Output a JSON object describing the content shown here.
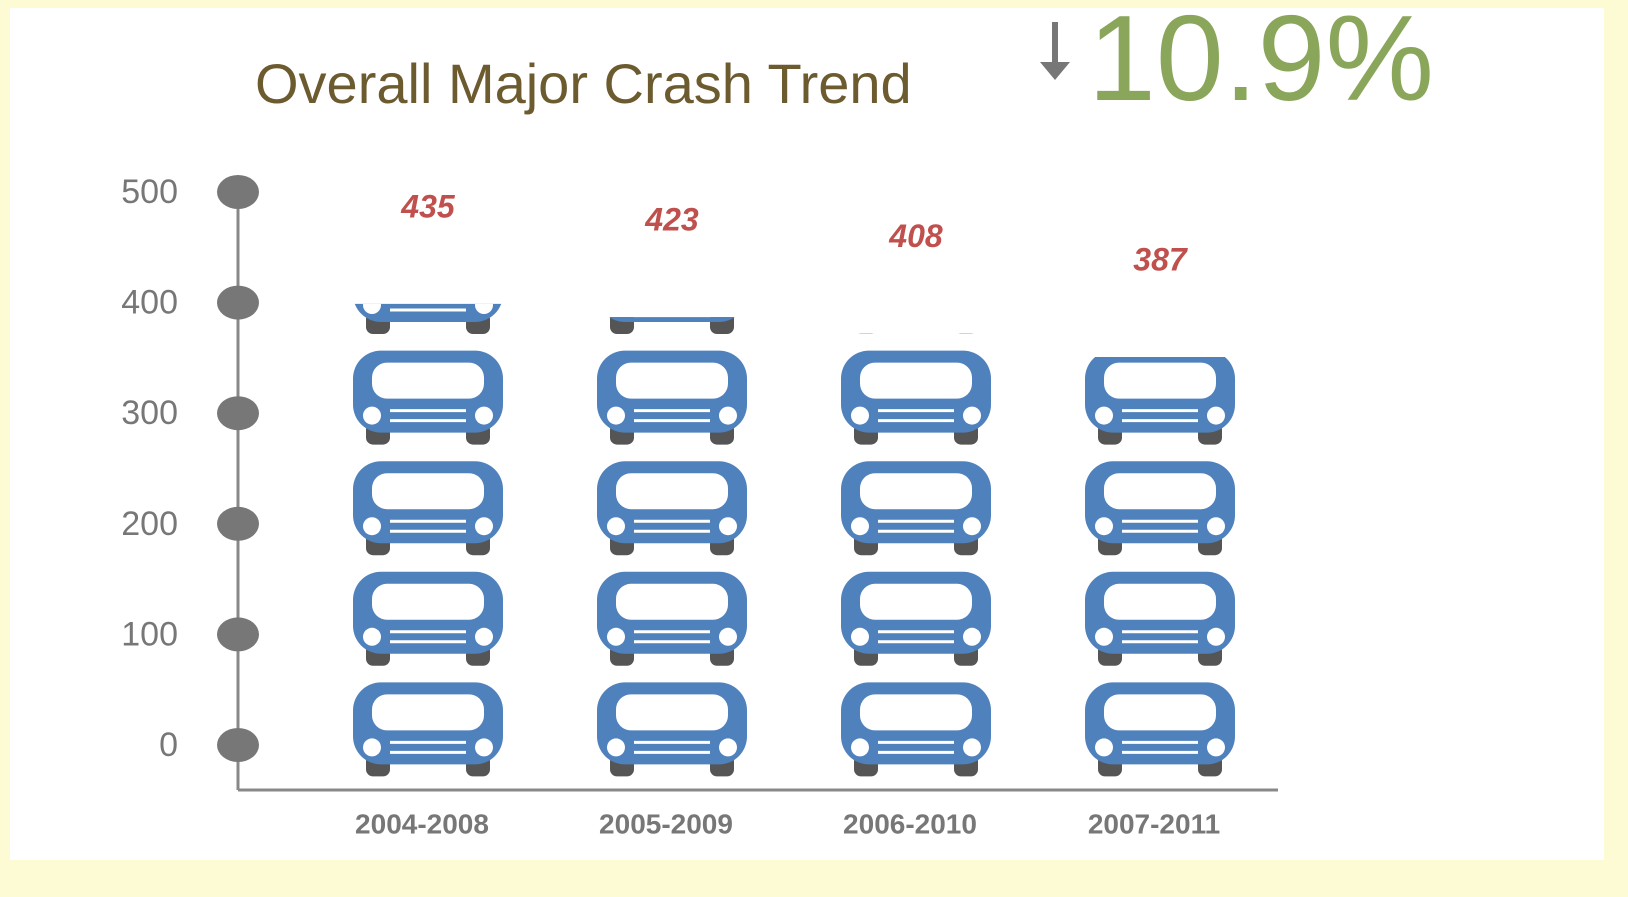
{
  "chart_data": {
    "type": "pictograph",
    "title": "Overall Major Crash Trend",
    "annotation": "10.9%",
    "categories": [
      "2004-2008",
      "2005-2009",
      "2006-2010",
      "2007-2011"
    ],
    "values": [
      435,
      423,
      408,
      387
    ],
    "color": "#4f81bd",
    "ylim": [
      0,
      500
    ],
    "yticks": [
      0,
      100,
      200,
      300,
      400,
      500
    ]
  }
}
